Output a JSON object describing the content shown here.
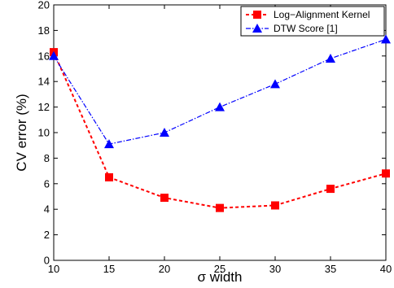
{
  "chart_data": {
    "type": "line",
    "title": "",
    "xlabel": "σ width",
    "ylabel": "CV error (%)",
    "x": [
      10,
      15,
      20,
      25,
      30,
      35,
      40
    ],
    "xlim": [
      10,
      40
    ],
    "ylim": [
      0,
      20
    ],
    "xticks": [
      "10",
      "15",
      "20",
      "25",
      "30",
      "35",
      "40"
    ],
    "yticks": [
      "0",
      "2",
      "4",
      "6",
      "8",
      "10",
      "12",
      "14",
      "16",
      "18",
      "20"
    ],
    "grid": false,
    "legend_position": "top-right",
    "series": [
      {
        "name": "Log−Alignment Kernel",
        "values": [
          16.3,
          6.5,
          4.9,
          4.1,
          4.3,
          5.6,
          6.8
        ],
        "color": "#ff0000",
        "marker": "square",
        "line_style": "dashed"
      },
      {
        "name": "DTW Score [1]",
        "values": [
          16.0,
          9.1,
          10.0,
          12.0,
          13.8,
          15.8,
          17.3
        ],
        "color": "#0000ff",
        "marker": "triangle",
        "line_style": "dash-dot"
      }
    ]
  }
}
